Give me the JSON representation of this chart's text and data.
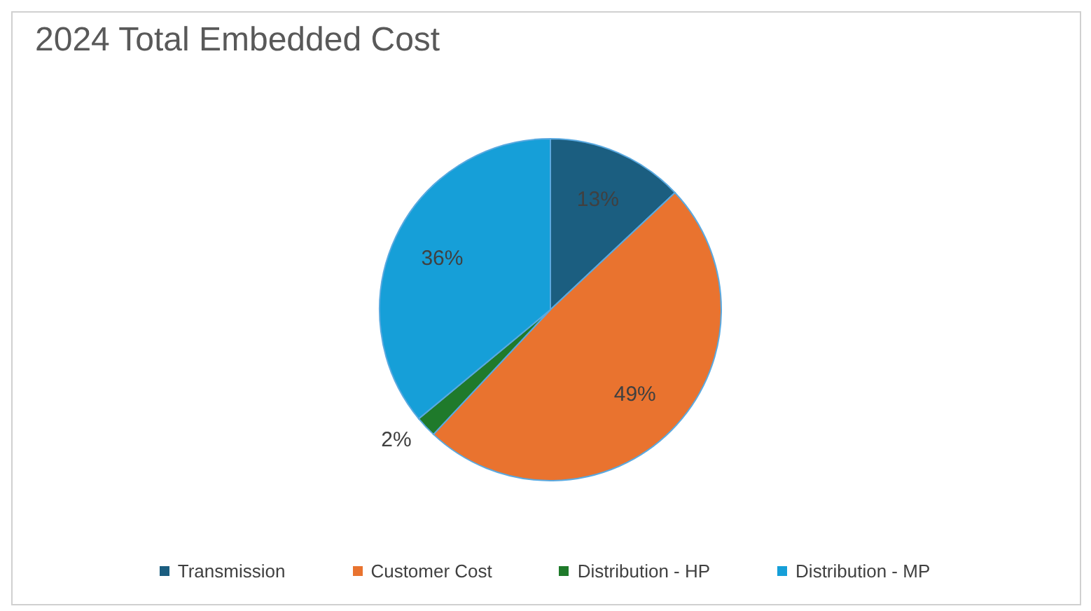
{
  "chart_data": {
    "type": "pie",
    "title": "2024 Total Embedded Cost",
    "categories": [
      "Transmission",
      "Customer Cost",
      "Distribution - HP",
      "Distribution - MP"
    ],
    "values": [
      13,
      49,
      2,
      36
    ],
    "colors": [
      "#1b5e80",
      "#e9732f",
      "#1f7a2b",
      "#169fd8"
    ],
    "value_labels": [
      "13%",
      "49%",
      "2%",
      "36%"
    ],
    "legend": "bottom"
  }
}
